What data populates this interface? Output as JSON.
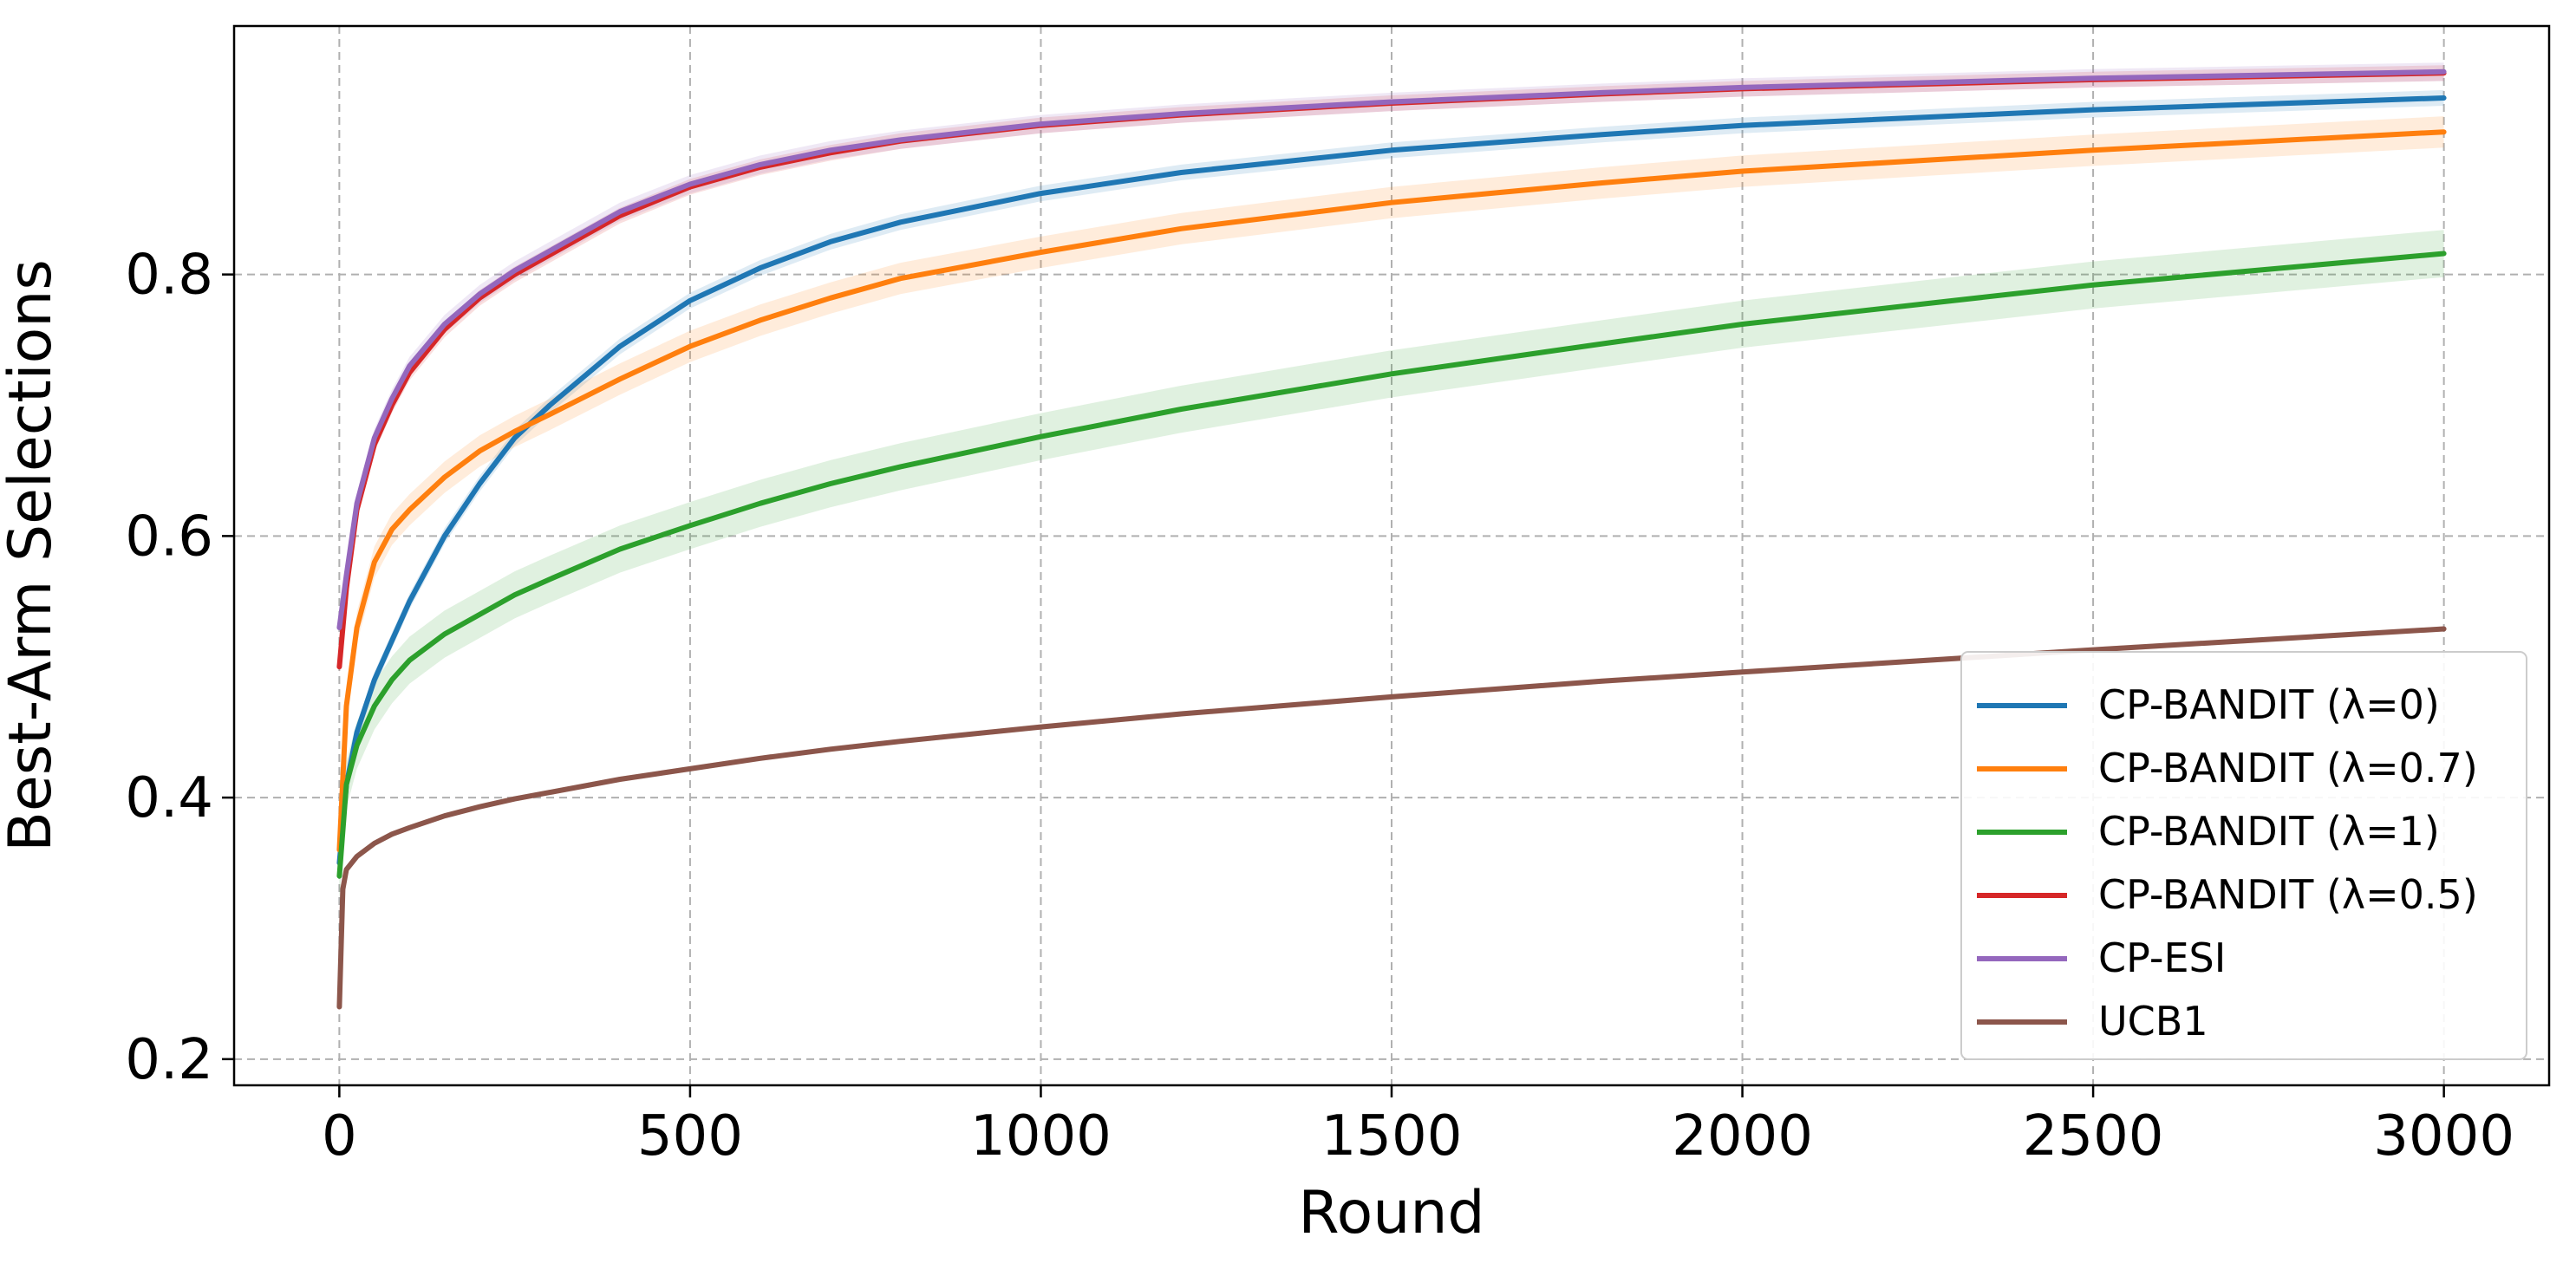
{
  "chart_data": {
    "type": "line",
    "title": "",
    "xlabel": "Round",
    "ylabel": "Best-Arm Selections",
    "xlim": [
      -150,
      3150
    ],
    "ylim": [
      0.18,
      0.99
    ],
    "xticks": [
      0,
      500,
      1000,
      1500,
      2000,
      2500,
      3000
    ],
    "xtick_labels": [
      "0",
      "500",
      "1000",
      "1500",
      "2000",
      "2500",
      "3000"
    ],
    "yticks": [
      0.2,
      0.4,
      0.6,
      0.8
    ],
    "ytick_labels": [
      "0.2",
      "0.4",
      "0.6",
      "0.8"
    ],
    "grid": true,
    "grid_style": "dashed",
    "legend_position": "lower-right",
    "shaded_band": "variability band around each series",
    "series": [
      {
        "name": "CP-BANDIT (λ=0)",
        "color": "#1f77b4",
        "x": [
          0,
          10,
          25,
          50,
          75,
          100,
          150,
          200,
          250,
          300,
          400,
          500,
          600,
          700,
          800,
          1000,
          1200,
          1500,
          1800,
          2000,
          2500,
          3000
        ],
        "y": [
          0.35,
          0.41,
          0.45,
          0.49,
          0.52,
          0.55,
          0.6,
          0.64,
          0.675,
          0.7,
          0.745,
          0.78,
          0.805,
          0.825,
          0.84,
          0.862,
          0.878,
          0.895,
          0.907,
          0.914,
          0.926,
          0.935
        ],
        "band": 0.006
      },
      {
        "name": "CP-BANDIT (λ=0.7)",
        "color": "#ff7f0e",
        "x": [
          0,
          10,
          25,
          50,
          75,
          100,
          150,
          200,
          250,
          300,
          400,
          500,
          600,
          700,
          800,
          1000,
          1200,
          1500,
          1800,
          2000,
          2500,
          3000
        ],
        "y": [
          0.36,
          0.47,
          0.53,
          0.58,
          0.605,
          0.62,
          0.645,
          0.665,
          0.68,
          0.693,
          0.72,
          0.745,
          0.765,
          0.782,
          0.797,
          0.817,
          0.835,
          0.855,
          0.87,
          0.879,
          0.895,
          0.909
        ],
        "band": 0.012
      },
      {
        "name": "CP-BANDIT (λ=1)",
        "color": "#2ca02c",
        "x": [
          0,
          10,
          25,
          50,
          75,
          100,
          150,
          200,
          250,
          300,
          400,
          500,
          600,
          700,
          800,
          1000,
          1200,
          1500,
          1800,
          2000,
          2500,
          3000
        ],
        "y": [
          0.34,
          0.41,
          0.44,
          0.47,
          0.49,
          0.505,
          0.525,
          0.54,
          0.555,
          0.567,
          0.59,
          0.608,
          0.625,
          0.64,
          0.653,
          0.676,
          0.697,
          0.724,
          0.747,
          0.762,
          0.792,
          0.816
        ],
        "band": 0.018
      },
      {
        "name": "CP-BANDIT (λ=0.5)",
        "color": "#d62728",
        "x": [
          0,
          10,
          25,
          50,
          75,
          100,
          150,
          200,
          250,
          300,
          400,
          500,
          600,
          700,
          800,
          1000,
          1200,
          1500,
          1800,
          2000,
          2500,
          3000
        ],
        "y": [
          0.5,
          0.56,
          0.62,
          0.67,
          0.7,
          0.725,
          0.758,
          0.782,
          0.8,
          0.815,
          0.845,
          0.867,
          0.882,
          0.893,
          0.902,
          0.914,
          0.922,
          0.931,
          0.938,
          0.942,
          0.949,
          0.954
        ],
        "band": 0.006
      },
      {
        "name": "CP-ESI",
        "color": "#9467bd",
        "x": [
          0,
          10,
          25,
          50,
          75,
          100,
          150,
          200,
          250,
          300,
          400,
          500,
          600,
          700,
          800,
          1000,
          1200,
          1500,
          1800,
          2000,
          2500,
          3000
        ],
        "y": [
          0.53,
          0.57,
          0.625,
          0.675,
          0.705,
          0.73,
          0.762,
          0.785,
          0.803,
          0.818,
          0.848,
          0.869,
          0.884,
          0.895,
          0.903,
          0.915,
          0.923,
          0.932,
          0.939,
          0.943,
          0.95,
          0.955
        ],
        "band": 0.007
      },
      {
        "name": "UCB1",
        "color": "#8c564b",
        "x": [
          0,
          5,
          10,
          25,
          50,
          75,
          100,
          150,
          200,
          250,
          300,
          400,
          500,
          600,
          700,
          800,
          1000,
          1200,
          1500,
          1800,
          2000,
          2500,
          3000
        ],
        "y": [
          0.24,
          0.33,
          0.345,
          0.355,
          0.365,
          0.372,
          0.377,
          0.386,
          0.393,
          0.399,
          0.404,
          0.414,
          0.422,
          0.43,
          0.437,
          0.443,
          0.454,
          0.464,
          0.477,
          0.489,
          0.496,
          0.513,
          0.529
        ],
        "band": 0.002
      }
    ]
  }
}
